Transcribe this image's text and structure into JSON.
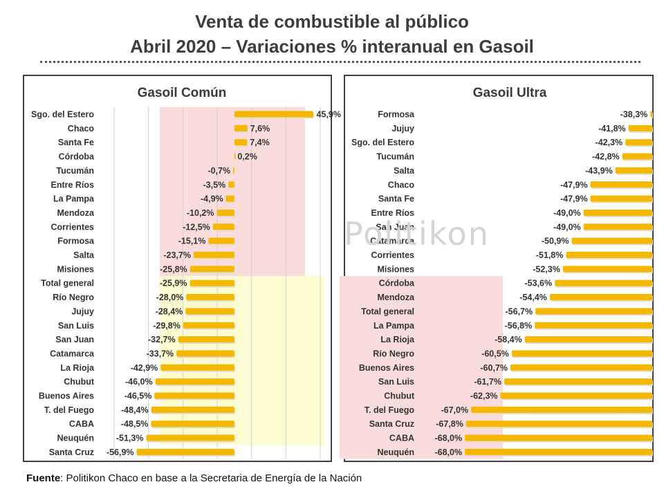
{
  "title_line1": "Venta de combustible al público",
  "title_line2": "Abril 2020 – Variaciones % interanual en Gasoil",
  "watermark": "Politikon",
  "footer": {
    "label": "Fuente",
    "text": ": Politikon Chaco en base a la Secretaria de Energía de la Nación"
  },
  "colors": {
    "bar": "#f5b800",
    "bar_shadow": "#e3dcc6",
    "red_zone": "#fbdcdc",
    "yellow_zone": "#fcfbd2"
  },
  "chart_data": [
    {
      "type": "bar",
      "orientation": "horizontal",
      "title": "Gasoil Común",
      "xlim": [
        -70,
        50
      ],
      "grid": "vertical",
      "categories": [
        "Sgo. del Estero",
        "Chaco",
        "Santa Fe",
        "Córdoba",
        "Tucumán",
        "Entre Ríos",
        "La Pampa",
        "Mendoza",
        "Corrientes",
        "Formosa",
        "Salta",
        "Misiones",
        "Total general",
        "Río Negro",
        "Jujuy",
        "San Luis",
        "San Juan",
        "Catamarca",
        "La Rioja",
        "Chubut",
        "Buenos Aires",
        "T. del Fuego",
        "CABA",
        "Neuquén",
        "Santa Cruz"
      ],
      "values": [
        45.9,
        7.6,
        7.4,
        0.2,
        -0.7,
        -3.5,
        -4.9,
        -10.2,
        -12.5,
        -15.1,
        -23.7,
        -25.8,
        -25.9,
        -28.0,
        -28.4,
        -29.8,
        -32.7,
        -33.7,
        -42.9,
        -46.0,
        -46.5,
        -48.4,
        -48.5,
        -51.3,
        -56.9
      ],
      "labels": [
        "45,9%",
        "7,6%",
        "7,4%",
        "0,2%",
        "-0,7%",
        "-3,5%",
        "-4,9%",
        "-10,2%",
        "-12,5%",
        "-15,1%",
        "-23,7%",
        "-25,8%",
        "-25,9%",
        "-28,0%",
        "-28,4%",
        "-29,8%",
        "-32,7%",
        "-33,7%",
        "-42,9%",
        "-46,0%",
        "-46,5%",
        "-48,4%",
        "-48,5%",
        "-51,3%",
        "-56,9%"
      ]
    },
    {
      "type": "bar",
      "orientation": "horizontal",
      "title": "Gasoil Ultra",
      "xlim": [
        -70,
        -38
      ],
      "categories": [
        "Formosa",
        "Jujuy",
        "Sgo. del Estero",
        "Tucumán",
        "Salta",
        "Chaco",
        "Santa Fe",
        "Entre Ríos",
        "San Juan",
        "Catamarca",
        "Corrientes",
        "Misiones",
        "Córdoba",
        "Mendoza",
        "Total general",
        "La Pampa",
        "La Rioja",
        "Río Negro",
        "Buenos Aires",
        "San Luis",
        "Chubut",
        "T. del Fuego",
        "Santa Cruz",
        "CABA",
        "Neuquén"
      ],
      "values": [
        -38.3,
        -41.8,
        -42.3,
        -42.8,
        -43.9,
        -47.9,
        -47.9,
        -49.0,
        -49.0,
        -50.9,
        -51.8,
        -52.3,
        -53.6,
        -54.4,
        -56.7,
        -56.8,
        -58.4,
        -60.5,
        -60.7,
        -61.7,
        -62.3,
        -67.0,
        -67.8,
        -68.0,
        -68.0
      ],
      "labels": [
        "-38,3%",
        "-41,8%",
        "-42,3%",
        "-42,8%",
        "-43,9%",
        "-47,9%",
        "-47,9%",
        "-49,0%",
        "-49,0%",
        "-50,9%",
        "-51,8%",
        "-52,3%",
        "-53,6%",
        "-54,4%",
        "-56,7%",
        "-56,8%",
        "-58,4%",
        "-60,5%",
        "-60,7%",
        "-61,7%",
        "-62,3%",
        "-67,0%",
        "-67,8%",
        "-68,0%",
        "-68,0%"
      ]
    }
  ]
}
